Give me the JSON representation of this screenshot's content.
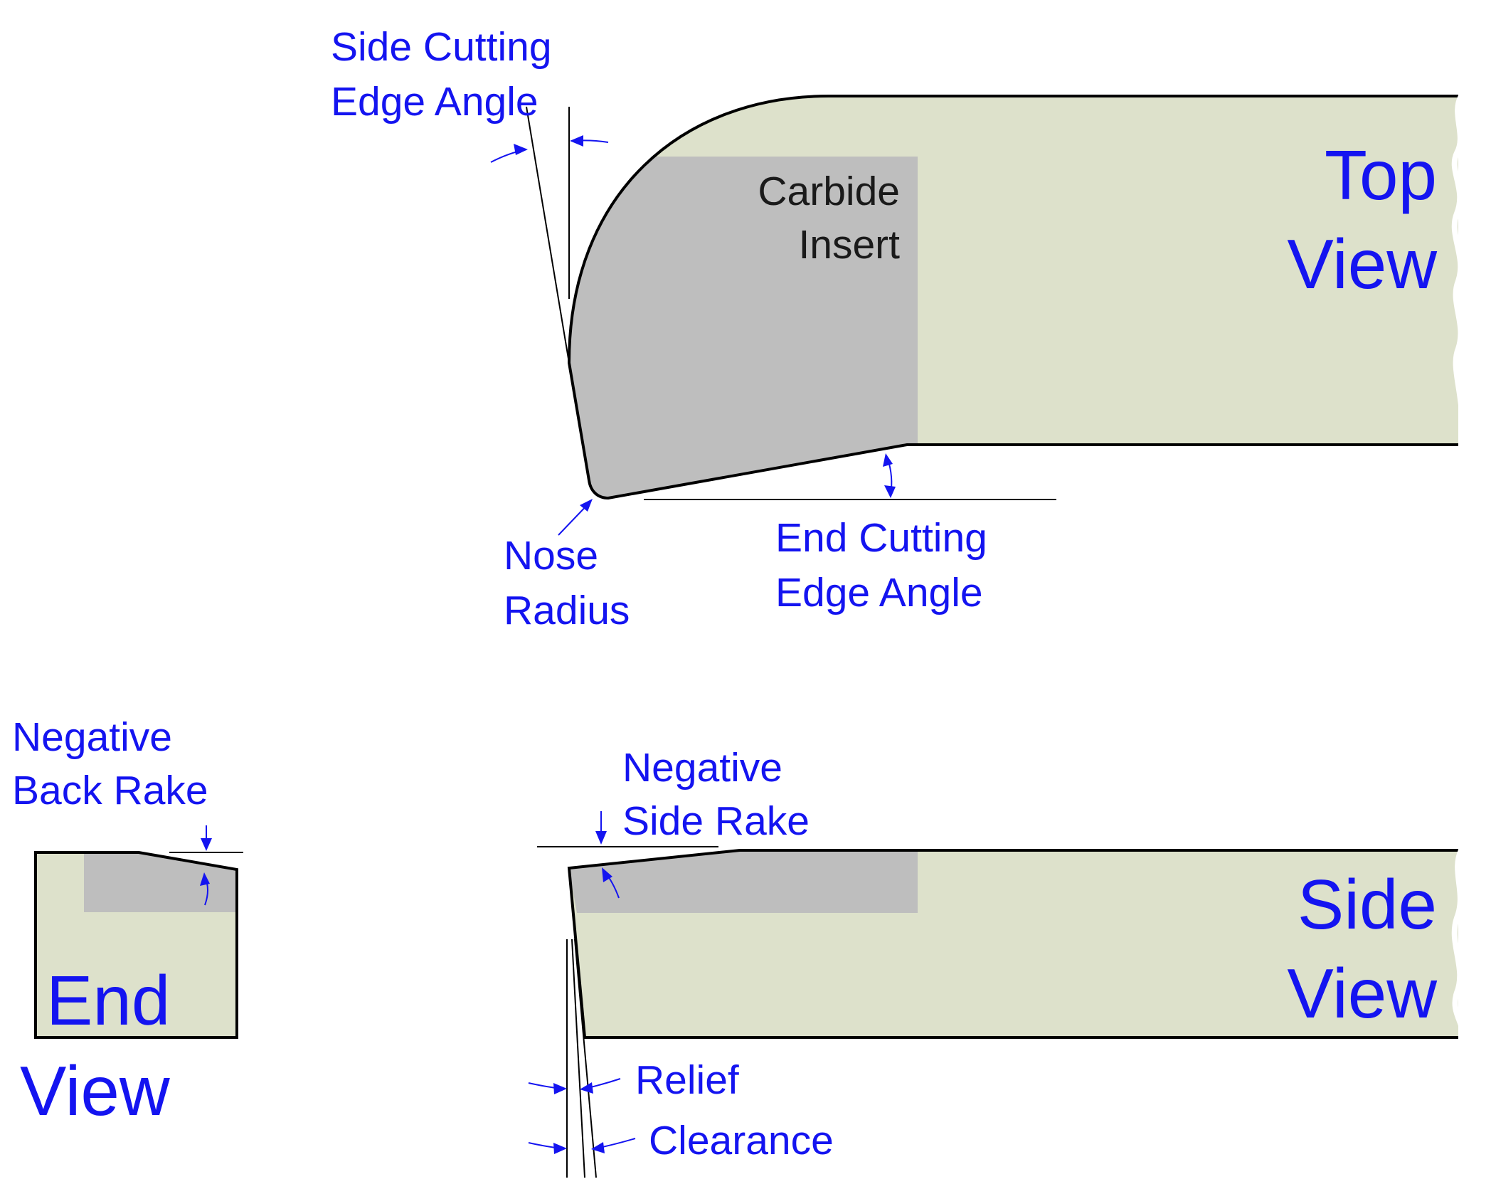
{
  "colors": {
    "shank": "#dde1cb",
    "insert": "#bebebe",
    "outline": "#000000",
    "annotation": "#1414f0",
    "insert_text": "#1a1a1a"
  },
  "top_view": {
    "title_line1": "Top",
    "title_line2": "View",
    "insert_label_line1": "Carbide",
    "insert_label_line2": "Insert",
    "side_cutting_edge_angle_line1": "Side Cutting",
    "side_cutting_edge_angle_line2": "Edge Angle",
    "nose_radius_line1": "Nose",
    "nose_radius_line2": "Radius",
    "end_cutting_edge_angle_line1": "End Cutting",
    "end_cutting_edge_angle_line2": "Edge Angle"
  },
  "end_view": {
    "title_line1": "End",
    "title_line2": "View",
    "back_rake_line1": "Negative",
    "back_rake_line2": "Back Rake"
  },
  "side_view": {
    "title_line1": "Side",
    "title_line2": "View",
    "side_rake_line1": "Negative",
    "side_rake_line2": "Side Rake",
    "relief_label": "Relief",
    "clearance_label": "Clearance"
  }
}
